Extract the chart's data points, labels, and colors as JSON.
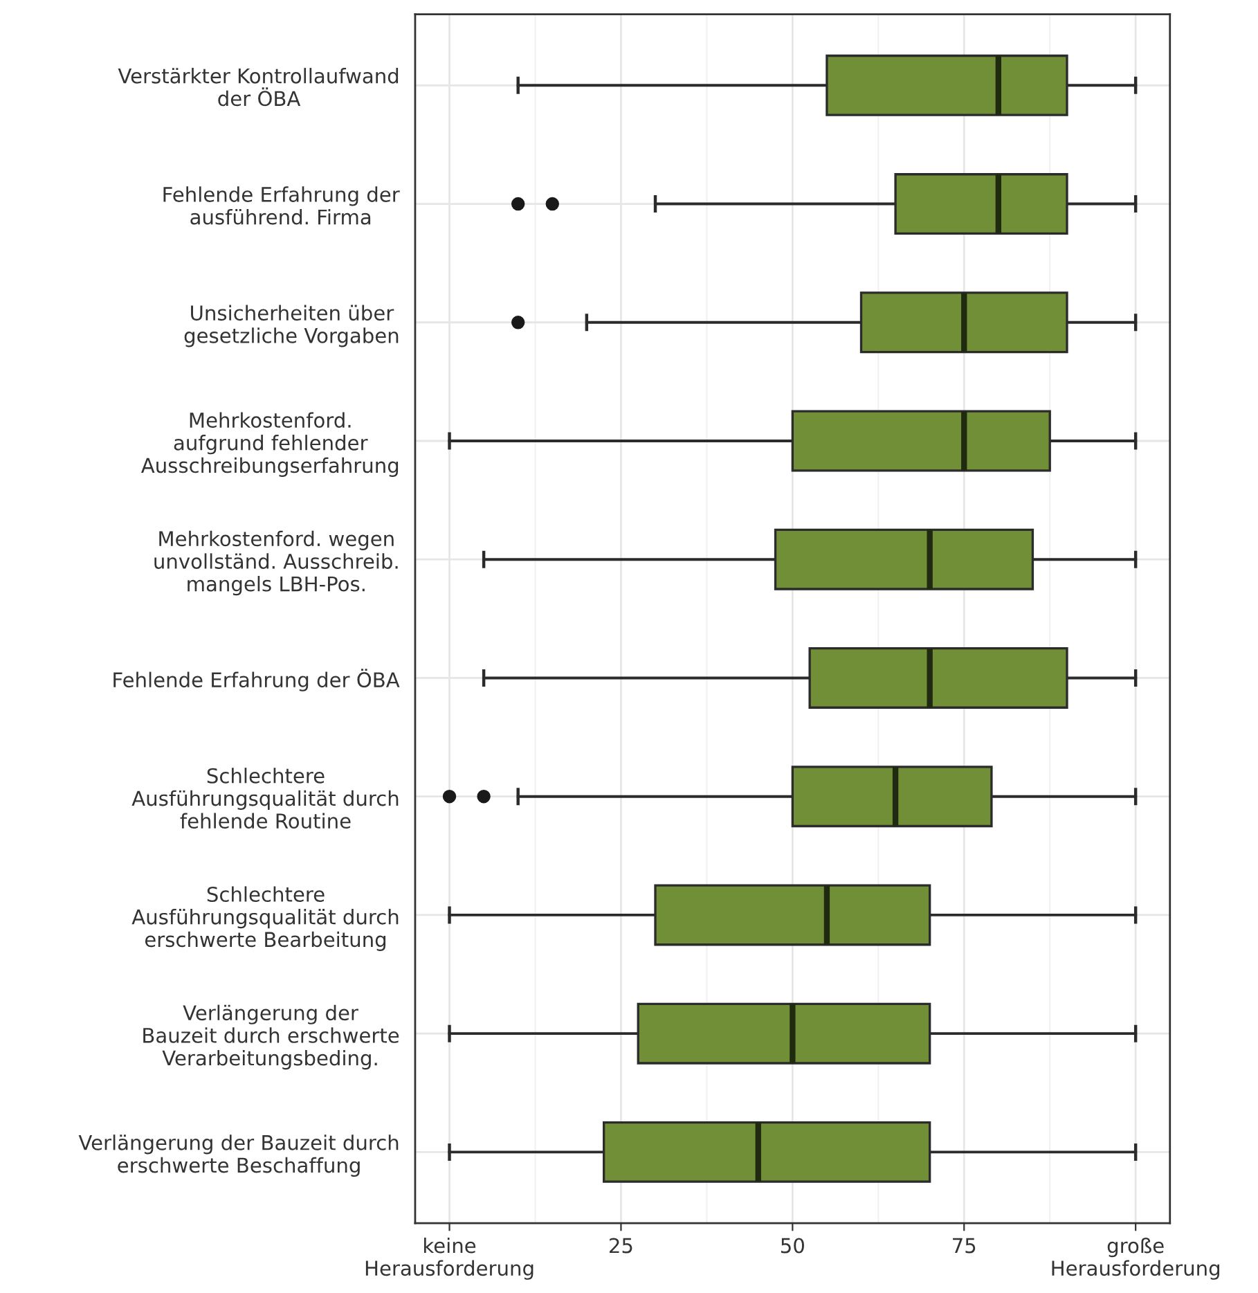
{
  "chart_data": {
    "type": "box",
    "orientation": "horizontal",
    "color": "#718f37",
    "grid": true,
    "categories": [
      "Verstärkter Kontrollaufwand\nder ÖBA",
      "Fehlende Erfahrung der\nausführend. Firma",
      "Unsicherheiten über\ngesetzliche Vorgaben",
      "Mehrkostenford.\naufgrund fehlender\nAusschreibungserfahrung",
      "Mehrkostenford. wegen\nunvollständ. Ausschreib.\nmangels LBH-Pos.",
      "Fehlende Erfahrung der ÖBA",
      "Schlechtere\nAusführungsqualität durch\nfehlende Routine",
      "Schlechtere\nAusführungsqualität durch\nerschwerte Bearbeitung",
      "Verlängerung der\nBauzeit durch erschwerte\nVerarbeitungsbeding.",
      "Verlängerung der Bauzeit durch\nerschwerte Beschaffung"
    ],
    "boxes": [
      {
        "low": 10,
        "q1": 55,
        "median": 80,
        "q3": 90,
        "high": 100
      },
      {
        "low": 30,
        "q1": 65,
        "median": 80,
        "q3": 90,
        "high": 100,
        "outliers": [
          10,
          15
        ]
      },
      {
        "low": 20,
        "q1": 60,
        "median": 75,
        "q3": 90,
        "high": 100,
        "outliers": [
          10
        ]
      },
      {
        "low": 0,
        "q1": 50,
        "median": 75,
        "q3": 87.5,
        "high": 100
      },
      {
        "low": 5,
        "q1": 47.5,
        "median": 70,
        "q3": 85,
        "high": 100
      },
      {
        "low": 5,
        "q1": 52.5,
        "median": 70,
        "q3": 90,
        "high": 100
      },
      {
        "low": 10,
        "q1": 50,
        "median": 65,
        "q3": 79,
        "high": 100,
        "outliers": [
          0,
          5
        ]
      },
      {
        "low": 0,
        "q1": 30,
        "median": 55,
        "q3": 70,
        "high": 100
      },
      {
        "low": 0,
        "q1": 27.5,
        "median": 50,
        "q3": 70,
        "high": 100
      },
      {
        "low": 0,
        "q1": 22.5,
        "median": 45,
        "q3": 70,
        "high": 100
      }
    ],
    "xlim": [
      -5,
      105
    ],
    "xticks": [
      {
        "value": 0,
        "label": "keine\nHerausforderung"
      },
      25,
      50,
      75,
      {
        "value": 100,
        "label": "große\nHerausforderung"
      }
    ]
  }
}
